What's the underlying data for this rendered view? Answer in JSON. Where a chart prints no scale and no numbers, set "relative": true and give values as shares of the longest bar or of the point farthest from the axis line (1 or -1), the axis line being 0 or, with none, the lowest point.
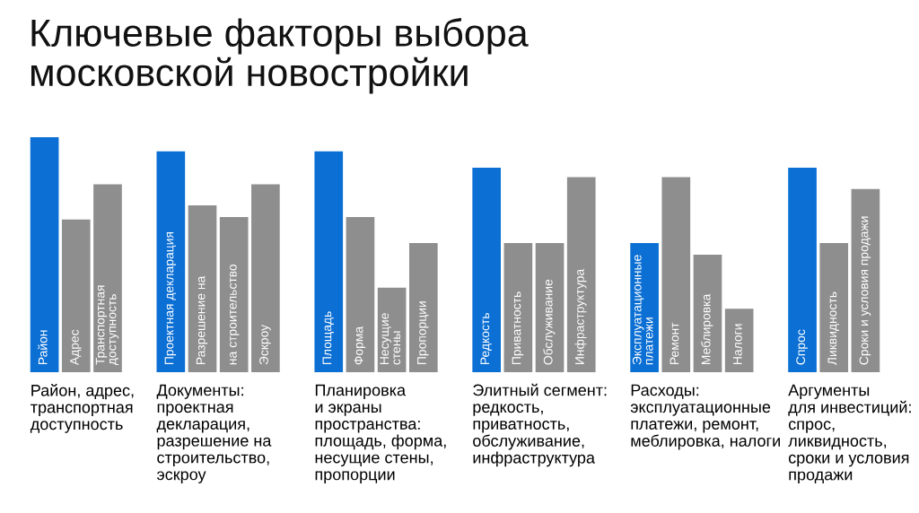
{
  "chart_data": {
    "type": "bar",
    "title": "Ключевые факторы выбора\nмосковской новостройки",
    "relative": true,
    "categories": [
      "Район",
      "Адрес",
      "Транспортная\nдоступность",
      null,
      "Проектная декларация",
      "Разрешение на",
      "на строительство",
      "Эскроу",
      null,
      "Площадь",
      "Форма",
      "Несущие\nстены",
      "Пропорции",
      null,
      "Редкость",
      "Приватность",
      "Обслуживание",
      "Инфраструктура",
      null,
      "Эксплуатационные\nплатежи",
      "Ремонт",
      "Меблировка",
      "Налоги",
      null,
      "Спрос",
      "Ликвидность",
      "Сроки и условия продажи"
    ],
    "values": [
      1.0,
      0.65,
      0.8,
      null,
      0.94,
      0.71,
      0.66,
      0.8,
      null,
      0.94,
      0.66,
      0.36,
      0.55,
      null,
      0.87,
      0.55,
      0.55,
      0.83,
      null,
      0.55,
      0.83,
      0.5,
      0.27,
      null,
      0.87,
      0.55,
      0.78
    ],
    "colors": [
      "#0b6fd4",
      "#8e8e8e",
      "#8e8e8e",
      null,
      "#0b6fd4",
      "#8e8e8e",
      "#8e8e8e",
      "#8e8e8e",
      null,
      "#0b6fd4",
      "#8e8e8e",
      "#8e8e8e",
      "#8e8e8e",
      null,
      "#0b6fd4",
      "#8e8e8e",
      "#8e8e8e",
      "#8e8e8e",
      null,
      "#0b6fd4",
      "#8e8e8e",
      "#8e8e8e",
      "#8e8e8e",
      null,
      "#0b6fd4",
      "#8e8e8e",
      "#8e8e8e"
    ],
    "annotations": [
      "Район, адрес,\nтранспортная\nдоступность",
      "Документы:\nпроектная\nдекларация,\nразрешение на\nстроительство,\nэскроу",
      "Планировка\nи экраны\nпространства:\nплощадь, форма,\nнесущие стены,\nпропорции",
      "Элитный сегмент:\nредкость,\nприватность,\nобслуживание,\nинфраструктура",
      "Расходы:\nэксплуатационные\nплатежи, ремонт,\nмеблировка, налоги",
      "Аргументы\nдля инвестиций:\nспрос,\nликвидность,\nсроки и условия\nпродажи"
    ]
  }
}
